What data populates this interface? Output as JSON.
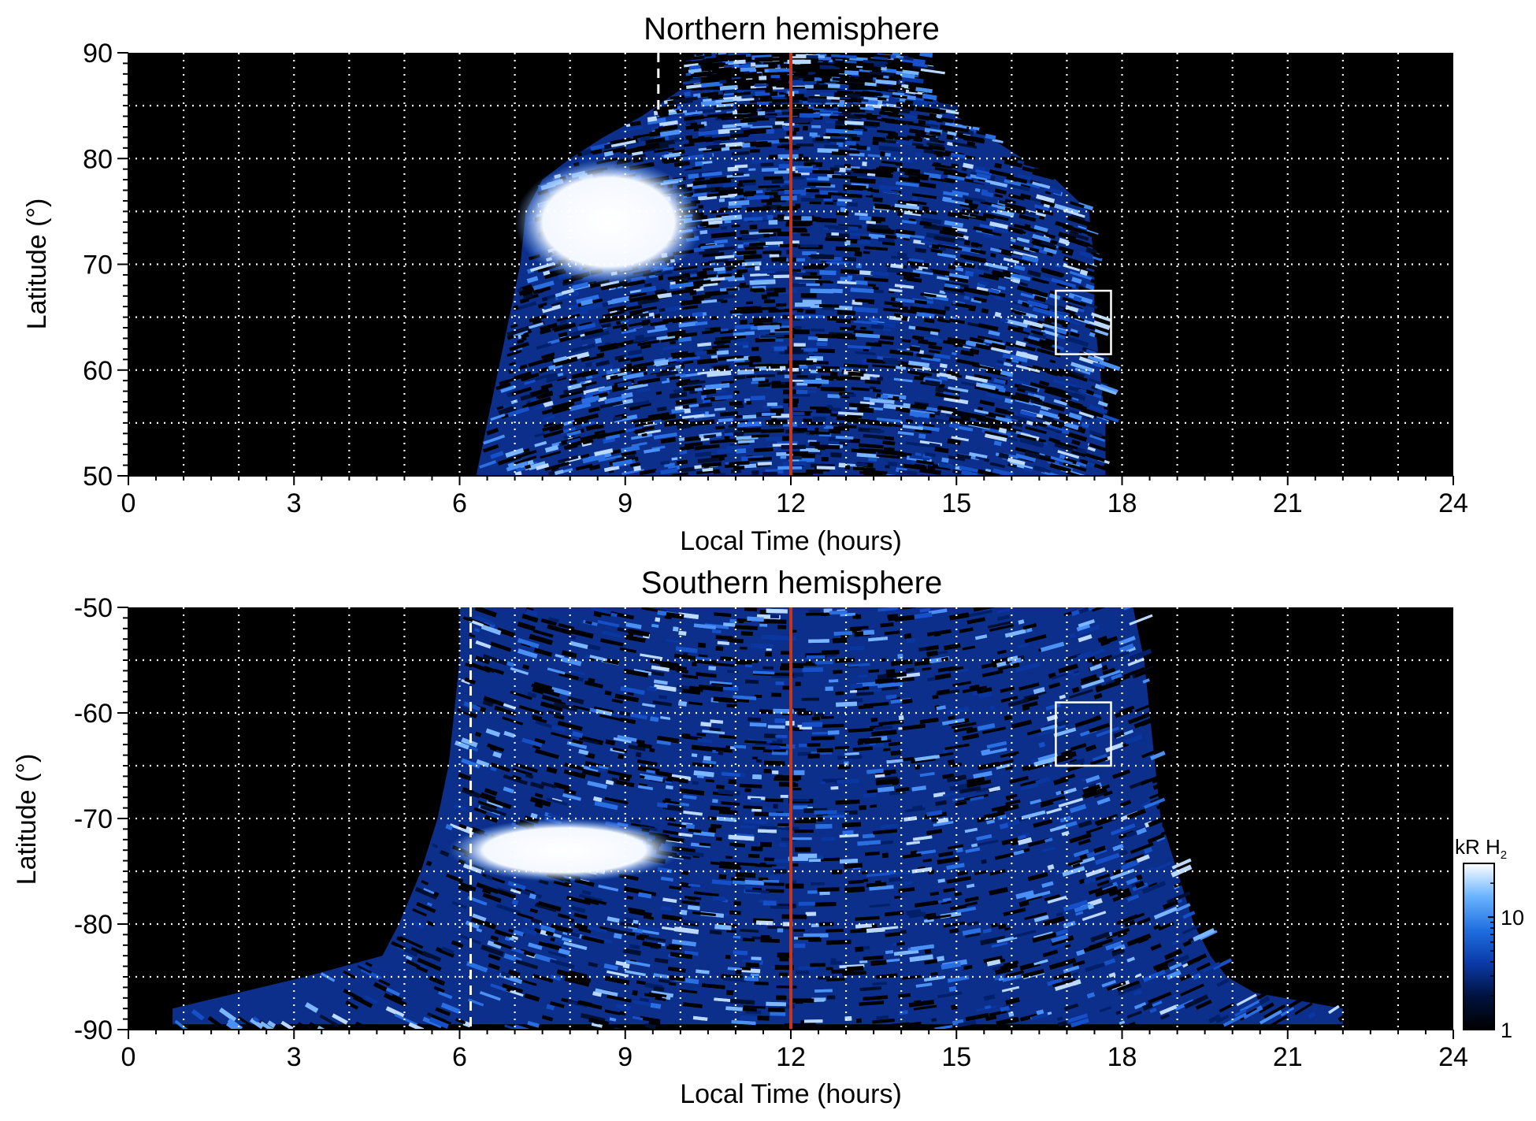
{
  "chart_data": [
    {
      "type": "heatmap",
      "title": "Northern hemisphere",
      "xlabel": "Local Time (hours)",
      "ylabel": "Latitude (°)",
      "xlim": [
        0,
        24
      ],
      "ylim": [
        50,
        90
      ],
      "xticks": [
        0,
        3,
        6,
        9,
        12,
        15,
        18,
        21,
        24
      ],
      "yticks": [
        50,
        60,
        70,
        80,
        90
      ],
      "grid": true,
      "background_color": "#000000",
      "noon_line": {
        "x": 12,
        "color": "#c0361e"
      },
      "dashed_marker": {
        "x": 9.6,
        "lat_range": [
          84,
          90
        ]
      },
      "box": {
        "x": [
          16.8,
          17.8
        ],
        "y": [
          61.5,
          67.5
        ]
      },
      "coverage": {
        "lt_range_at_lat50": [
          6.3,
          17.7
        ],
        "lt_range_at_lat86": [
          9.1,
          14.7
        ]
      },
      "bright_region": {
        "lt": [
          7.0,
          10.4
        ],
        "lat": [
          68,
          80
        ]
      }
    },
    {
      "type": "heatmap",
      "title": "Southern hemisphere",
      "xlabel": "Local Time (hours)",
      "ylabel": "Latitude (°)",
      "xlim": [
        0,
        24
      ],
      "ylim": [
        -90,
        -50
      ],
      "xticks": [
        0,
        3,
        6,
        9,
        12,
        15,
        18,
        21,
        24
      ],
      "yticks": [
        -50,
        -60,
        -70,
        -80,
        -90
      ],
      "grid": true,
      "background_color": "#000000",
      "noon_line": {
        "x": 12,
        "color": "#c0361e"
      },
      "dashed_marker": {
        "x": 6.2,
        "lat_range": [
          -90,
          -50
        ]
      },
      "box": {
        "x": [
          16.8,
          17.8
        ],
        "y": [
          -65,
          -59
        ]
      },
      "coverage": {
        "lt_range_at_lat_minus50": [
          5.9,
          18.5
        ],
        "lt_range_at_lat_minus88": [
          0.8,
          22.0
        ]
      },
      "bright_region": {
        "lt": [
          5.8,
          10.0
        ],
        "lat": [
          -76,
          -70
        ]
      },
      "colorbar": {
        "title": "kR H",
        "title_subscript": "2",
        "scale": "log",
        "ticks": [
          {
            "label": "1",
            "value": 1
          },
          {
            "label": "10",
            "value": 10
          }
        ],
        "range": [
          1,
          30
        ],
        "colors": [
          "#000000",
          "#00123d",
          "#0a3aa8",
          "#1f6fe0",
          "#69b3ff",
          "#ffffff"
        ]
      }
    }
  ]
}
